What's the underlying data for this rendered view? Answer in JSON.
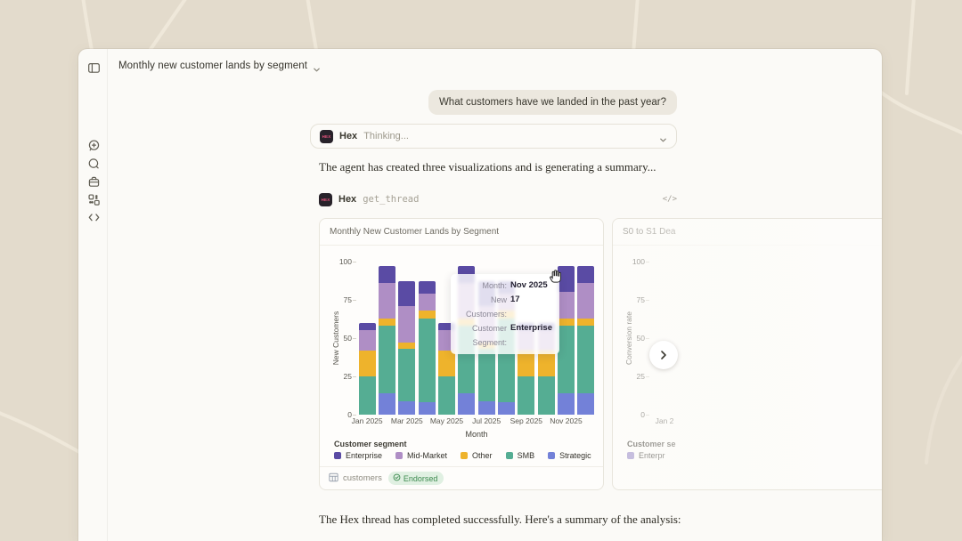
{
  "window": {
    "title": "Monthly new customer lands by segment"
  },
  "sidebar": {
    "icons": [
      "sidebar-toggle",
      "new-thread",
      "chat-threads",
      "projects-box",
      "apps-grid",
      "code"
    ]
  },
  "chat": {
    "user_message": "What customers have we landed in the past year?",
    "thinking": {
      "agent": "Hex",
      "logo_text": "HEX",
      "status": "Thinking..."
    },
    "message_1": "The agent has created three visualizations and is generating a summary...",
    "tool_call": {
      "agent": "Hex",
      "name": "get_thread",
      "code_icon": "</>"
    },
    "message_2": "The Hex thread has completed successfully. Here's a summary of the analysis:"
  },
  "tooltip": {
    "rows": [
      {
        "label": "Month:",
        "value": "Nov 2025"
      },
      {
        "label": "New Customers:",
        "value": "17"
      },
      {
        "label": "Customer Segment:",
        "value": "Enterprise"
      }
    ]
  },
  "card1_footer": {
    "source": "customers",
    "endorsed": "Endorsed"
  },
  "colors": {
    "background": "#E3DBCC",
    "panel": "#FBFAF7",
    "endorsed_bg": "#E0F0E2",
    "endorsed_text": "#3C8A4E",
    "hex_logo_bg": "#28222A",
    "hex_logo_text": "#E8547E"
  },
  "chart_data": [
    {
      "type": "bar",
      "stacked": true,
      "title": "Monthly New Customer Lands by Segment",
      "xlabel": "Month",
      "ylabel": "New Customers",
      "ylim": [
        0,
        100
      ],
      "yticks": [
        0,
        25,
        50,
        75,
        100
      ],
      "grid": false,
      "legend_position": "bottom",
      "legend_title": "Customer segment",
      "legend_order": [
        "Enterprise",
        "Mid-Market",
        "Other",
        "SMB",
        "Strategic"
      ],
      "categories": [
        "Jan 2025",
        "Feb 2025",
        "Mar 2025",
        "Apr 2025",
        "May 2025",
        "Jun 2025",
        "Jul 2025",
        "Aug 2025",
        "Sep 2025",
        "Oct 2025",
        "Nov 2025",
        "Dec 2025"
      ],
      "x_tick_labels_shown": [
        "Jan 2025",
        "Mar 2025",
        "May 2025",
        "Jul 2025",
        "Sep 2025",
        "Nov 2025"
      ],
      "series": [
        {
          "name": "Strategic",
          "color": "#7381D8",
          "values": [
            0,
            14,
            9,
            8,
            0,
            14,
            9,
            8,
            0,
            0,
            14,
            14
          ]
        },
        {
          "name": "SMB",
          "color": "#55AD93",
          "values": [
            25,
            44,
            34,
            55,
            25,
            44,
            34,
            55,
            25,
            25,
            44,
            44
          ]
        },
        {
          "name": "Other",
          "color": "#EEB32C",
          "values": [
            17,
            5,
            4,
            5,
            17,
            5,
            4,
            5,
            17,
            17,
            5,
            5
          ]
        },
        {
          "name": "Mid-Market",
          "color": "#AF8EC5",
          "values": [
            13,
            23,
            24,
            11,
            13,
            23,
            24,
            11,
            13,
            13,
            17,
            23
          ]
        },
        {
          "name": "Enterprise",
          "color": "#5A4BA4",
          "values": [
            5,
            11,
            16,
            8,
            5,
            11,
            16,
            8,
            5,
            5,
            17,
            11
          ]
        }
      ]
    },
    {
      "type": "bar",
      "title": "S0 to S1 Dea",
      "ylabel": "Conversion rate",
      "ylim": [
        0,
        100
      ],
      "yticks": [
        0,
        25,
        50,
        75,
        100
      ],
      "x_tick_labels_shown": [
        "Jan 2"
      ],
      "legend_title": "Customer se",
      "series": [
        {
          "name": "Enterpr",
          "color": "#9A8CC9"
        }
      ]
    }
  ]
}
